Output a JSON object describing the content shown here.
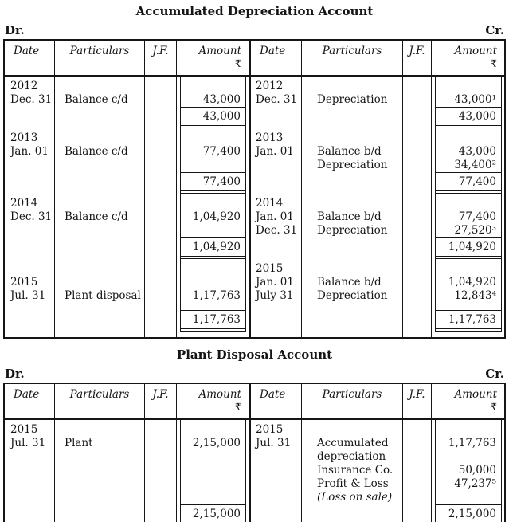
{
  "accounts": [
    {
      "title": "Accumulated Depreciation Account",
      "dr": "Dr.",
      "cr": "Cr.",
      "col_headers": {
        "date": "Date",
        "particulars": "Particulars",
        "jf": "J.F.",
        "amount": "Amount",
        "rupee": "₹"
      },
      "blocks": [
        {
          "left": {
            "dates": [
              "2012",
              "Dec. 31"
            ],
            "particulars": [
              "",
              "Balance c/d"
            ],
            "amounts": [
              "",
              "43,000"
            ],
            "total": "43,000"
          },
          "right": {
            "dates": [
              "2012",
              "Dec. 31"
            ],
            "particulars": [
              "",
              "Depreciation"
            ],
            "amounts": [
              "",
              "43,000¹"
            ],
            "total": "43,000"
          }
        },
        {
          "left": {
            "dates": [
              "2013",
              "Jan. 01",
              ""
            ],
            "particulars": [
              "",
              "Balance c/d",
              ""
            ],
            "amounts": [
              "",
              "77,400",
              ""
            ],
            "total": "77,400"
          },
          "right": {
            "dates": [
              "2013",
              "Jan. 01",
              ""
            ],
            "particulars": [
              "",
              "Balance b/d",
              "Depreciation"
            ],
            "amounts": [
              "",
              "43,000",
              "34,400²"
            ],
            "total": "77,400"
          }
        },
        {
          "left": {
            "dates": [
              "2014",
              "Dec. 31",
              ""
            ],
            "particulars": [
              "",
              "Balance c/d",
              ""
            ],
            "amounts": [
              "",
              "1,04,920",
              ""
            ],
            "total": "1,04,920"
          },
          "right": {
            "dates": [
              "2014",
              "Jan. 01",
              "Dec. 31"
            ],
            "particulars": [
              "",
              "Balance b/d",
              "Depreciation"
            ],
            "amounts": [
              "",
              "77,400",
              "27,520³"
            ],
            "total": "1,04,920"
          }
        },
        {
          "spacer": true,
          "left": {
            "dates": [
              "",
              "2015",
              "Jul. 31"
            ],
            "particulars": [
              "",
              "",
              "Plant disposal"
            ],
            "amounts": [
              "",
              "",
              "1,17,763"
            ],
            "total": "1,17,763"
          },
          "right": {
            "dates": [
              "2015",
              "Jan. 01",
              "July 31"
            ],
            "particulars": [
              "",
              "Balance b/d",
              "Depreciation"
            ],
            "amounts": [
              "",
              "1,04,920",
              "12,843⁴"
            ],
            "total": "1,17,763"
          }
        }
      ]
    },
    {
      "title": "Plant Disposal Account",
      "dr": "Dr.",
      "cr": "Cr.",
      "col_headers": {
        "date": "Date",
        "particulars": "Particulars",
        "jf": "J.F.",
        "amount": "Amount",
        "rupee": "₹"
      },
      "blocks": [
        {
          "left": {
            "dates": [
              "2015",
              "Jul. 31",
              "",
              "",
              "",
              ""
            ],
            "particulars": [
              "",
              "Plant",
              "",
              "",
              "",
              ""
            ],
            "amounts": [
              "",
              "2,15,000",
              "",
              "",
              "",
              ""
            ],
            "total": "2,15,000"
          },
          "right": {
            "dates": [
              "2015",
              "Jul. 31",
              "",
              "",
              "",
              ""
            ],
            "particulars": [
              "",
              "Accumulated",
              "depreciation",
              "Insurance Co.",
              "Profit & Loss",
              "(Loss on sale)"
            ],
            "amounts": [
              "",
              "1,17,763",
              "",
              "50,000",
              "47,237⁵",
              ""
            ],
            "total": "2,15,000"
          }
        }
      ]
    }
  ],
  "italic_particulars": [
    "(Loss on sale)"
  ]
}
